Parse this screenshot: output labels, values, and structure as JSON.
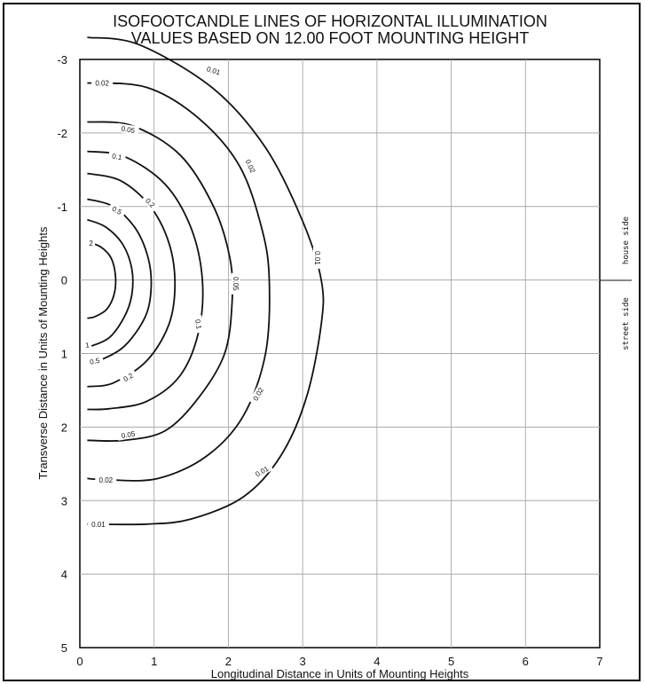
{
  "chart_data": {
    "type": "line",
    "title": [
      "ISOFOOTCANDLE LINES OF HORIZONTAL ILLUMINATION",
      "VALUES BASED ON 12.00 FOOT MOUNTING HEIGHT"
    ],
    "xlabel": "Longitudinal Distance in Units of Mounting Heights",
    "ylabel": "Transverse Distance in Units of Mounting Heights",
    "xlim": [
      0,
      7
    ],
    "ylim": [
      -3,
      5
    ],
    "y_inverted": true,
    "grid": true,
    "x_ticks": [
      "0",
      "1",
      "2",
      "3",
      "4",
      "5",
      "6",
      "7"
    ],
    "y_ticks": [
      "-3",
      "-2",
      "-1",
      "0",
      "1",
      "2",
      "3",
      "4",
      "5"
    ],
    "side_labels": {
      "house": "house side",
      "street": "street side"
    },
    "series": [
      {
        "label": "0.01",
        "value": 0.01,
        "x": [
          0.1,
          0.8,
          1.8,
          2.5,
          3.0,
          3.25,
          3.25,
          3.05,
          2.7,
          2.2,
          1.5,
          0.9,
          0.1
        ],
        "y": [
          -3.3,
          -3.2,
          -2.6,
          -1.8,
          -0.8,
          0.0,
          0.6,
          1.6,
          2.4,
          2.95,
          3.25,
          3.32,
          3.32
        ]
      },
      {
        "label": "0.02",
        "value": 0.02,
        "x": [
          0.1,
          0.9,
          1.6,
          2.15,
          2.45,
          2.55,
          2.5,
          2.2,
          1.7,
          1.05,
          0.4,
          0.1
        ],
        "y": [
          -2.68,
          -2.62,
          -2.2,
          -1.55,
          -0.7,
          0.0,
          1.0,
          1.85,
          2.4,
          2.7,
          2.72,
          2.7
        ]
      },
      {
        "label": "0.05",
        "value": 0.05,
        "x": [
          0.1,
          0.7,
          1.35,
          1.8,
          2.02,
          2.05,
          1.95,
          1.6,
          1.15,
          0.6,
          0.1
        ],
        "y": [
          -2.15,
          -2.1,
          -1.7,
          -1.0,
          -0.3,
          0.3,
          1.0,
          1.6,
          2.05,
          2.18,
          2.18
        ]
      },
      {
        "label": "0.1",
        "value": 0.1,
        "x": [
          0.1,
          0.6,
          1.15,
          1.5,
          1.65,
          1.6,
          1.35,
          0.9,
          0.4,
          0.1
        ],
        "y": [
          -1.75,
          -1.68,
          -1.3,
          -0.7,
          0.0,
          0.7,
          1.3,
          1.65,
          1.75,
          1.76
        ]
      },
      {
        "label": "0.2",
        "value": 0.2,
        "x": [
          0.1,
          0.55,
          0.95,
          1.2,
          1.28,
          1.2,
          0.9,
          0.45,
          0.1
        ],
        "y": [
          -1.45,
          -1.35,
          -1.0,
          -0.5,
          0.05,
          0.6,
          1.1,
          1.4,
          1.45
        ]
      },
      {
        "label": "0.5",
        "value": 0.5,
        "x": [
          0.1,
          0.45,
          0.75,
          0.92,
          0.96,
          0.88,
          0.6,
          0.25,
          0.1
        ],
        "y": [
          -1.1,
          -1.0,
          -0.7,
          -0.3,
          0.1,
          0.5,
          0.9,
          1.1,
          1.12
        ]
      },
      {
        "label": "1",
        "value": 1,
        "x": [
          0.1,
          0.35,
          0.58,
          0.7,
          0.7,
          0.6,
          0.4,
          0.15,
          0.1
        ],
        "y": [
          -0.82,
          -0.72,
          -0.48,
          -0.15,
          0.2,
          0.5,
          0.78,
          0.9,
          0.9
        ]
      },
      {
        "label": "2",
        "value": 2,
        "x": [
          0.1,
          0.28,
          0.42,
          0.48,
          0.46,
          0.36,
          0.2,
          0.1
        ],
        "y": [
          -0.52,
          -0.45,
          -0.3,
          -0.05,
          0.2,
          0.4,
          0.5,
          0.52
        ]
      }
    ],
    "contour_labels": [
      {
        "text": "0.01",
        "x": 1.8,
        "y": -2.85,
        "angle": 18
      },
      {
        "text": "0.01",
        "x": 3.2,
        "y": -0.3,
        "angle": 90
      },
      {
        "text": "0.01",
        "x": 2.45,
        "y": 2.6,
        "angle": -30
      },
      {
        "text": "0.01",
        "x": 0.25,
        "y": 3.32,
        "angle": 0
      },
      {
        "text": "0.02",
        "x": 0.3,
        "y": -2.68,
        "angle": 0
      },
      {
        "text": "0.02",
        "x": 2.3,
        "y": -1.55,
        "angle": 65
      },
      {
        "text": "0.02",
        "x": 2.4,
        "y": 1.55,
        "angle": -60
      },
      {
        "text": "0.02",
        "x": 0.35,
        "y": 2.72,
        "angle": 0
      },
      {
        "text": "0.05",
        "x": 0.65,
        "y": -2.05,
        "angle": 10
      },
      {
        "text": "0.05",
        "x": 2.1,
        "y": 0.05,
        "angle": 90
      },
      {
        "text": "0.05",
        "x": 0.65,
        "y": 2.1,
        "angle": -10
      },
      {
        "text": "0.1",
        "x": 0.5,
        "y": -1.68,
        "angle": 10
      },
      {
        "text": "0.1",
        "x": 1.6,
        "y": 0.6,
        "angle": 80
      },
      {
        "text": "0.2",
        "x": 0.95,
        "y": -1.05,
        "angle": 45
      },
      {
        "text": "0.2",
        "x": 0.65,
        "y": 1.32,
        "angle": -30
      },
      {
        "text": "0.5",
        "x": 0.5,
        "y": -0.95,
        "angle": 30
      },
      {
        "text": "0.5",
        "x": 0.2,
        "y": 1.1,
        "angle": -10
      },
      {
        "text": "1",
        "x": 0.1,
        "y": 0.88,
        "angle": -10
      },
      {
        "text": "2",
        "x": 0.15,
        "y": -0.5,
        "angle": 0
      }
    ]
  }
}
